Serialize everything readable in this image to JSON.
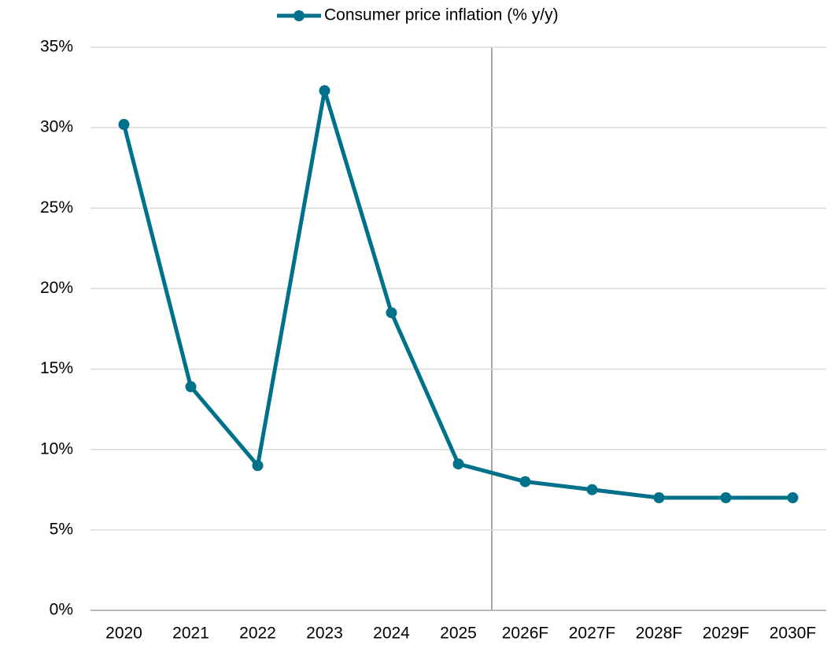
{
  "chart_data": {
    "type": "line",
    "categories": [
      "2020",
      "2021",
      "2022",
      "2023",
      "2024",
      "2025",
      "2026F",
      "2027F",
      "2028F",
      "2029F",
      "2030F"
    ],
    "series": [
      {
        "name": "Consumer price inflation (% y/y)",
        "color": "#00718a",
        "values": [
          30.2,
          13.9,
          9.0,
          32.3,
          18.5,
          9.1,
          8.0,
          7.5,
          7.0,
          7.0,
          7.0
        ]
      }
    ],
    "ylim": [
      0,
      35
    ],
    "yticks": [
      {
        "value": 0,
        "label": "0%"
      },
      {
        "value": 5,
        "label": "5%"
      },
      {
        "value": 10,
        "label": "10%"
      },
      {
        "value": 15,
        "label": "15%"
      },
      {
        "value": 20,
        "label": "20%"
      },
      {
        "value": 25,
        "label": "25%"
      },
      {
        "value": 30,
        "label": "30%"
      },
      {
        "value": 35,
        "label": "35%"
      }
    ],
    "grid": true,
    "legend": "top"
  }
}
